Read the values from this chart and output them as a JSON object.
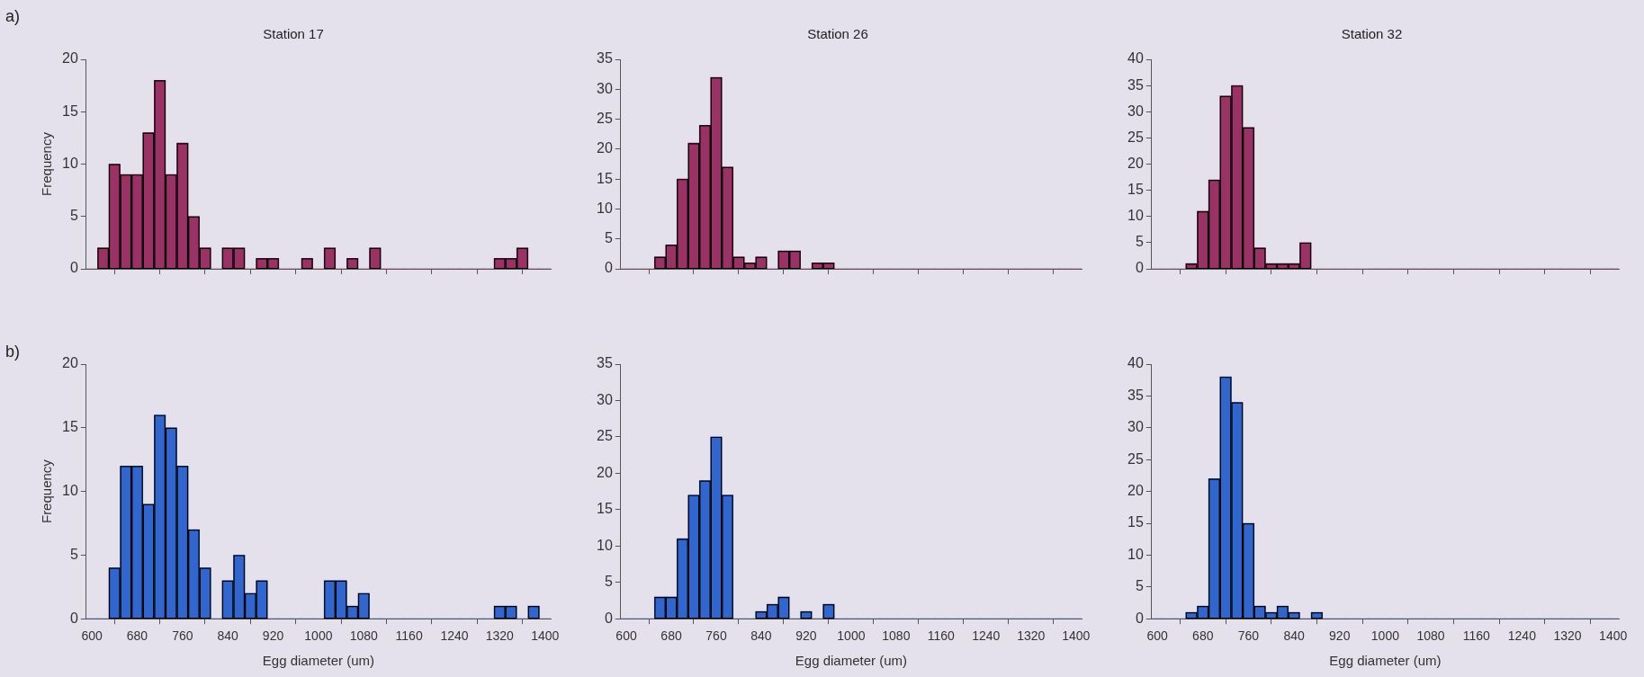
{
  "chart_data": [
    {
      "type": "histogram",
      "title": "Station 17",
      "ylabel": "Frequency",
      "annotations": [
        "a)"
      ],
      "color": "#993366",
      "tick_labels": "y",
      "bins": [
        590,
        610,
        630,
        650,
        670,
        690,
        710,
        730,
        750,
        770,
        790,
        810,
        830,
        850,
        870,
        890,
        910,
        930,
        950,
        970,
        990,
        1010,
        1030,
        1050,
        1070,
        1090,
        1110,
        1130,
        1150,
        1170,
        1190,
        1210,
        1230,
        1250,
        1270,
        1290,
        1310,
        1330,
        1350,
        1370,
        1390,
        1410
      ],
      "values": [
        0,
        2,
        10,
        9,
        9,
        13,
        18,
        9,
        12,
        5,
        2,
        0,
        2,
        2,
        0,
        1,
        1,
        0,
        0,
        1,
        0,
        2,
        0,
        1,
        0,
        2,
        0,
        0,
        0,
        0,
        0,
        0,
        0,
        0,
        0,
        0,
        1,
        1,
        2,
        0,
        0
      ],
      "xlim": [
        590,
        1410
      ],
      "xticks": [
        600,
        680,
        760,
        840,
        920,
        1000,
        1080,
        1160,
        1240,
        1320,
        1400
      ],
      "ylim": [
        0,
        20
      ],
      "yticks": [
        0,
        5,
        10,
        15,
        20
      ],
      "grid": false
    },
    {
      "type": "histogram",
      "title": "Station 26",
      "color": "#993366",
      "tick_labels": "y",
      "bins": [
        590,
        610,
        630,
        650,
        670,
        690,
        710,
        730,
        750,
        770,
        790,
        810,
        830,
        850,
        870,
        890,
        910,
        930,
        950,
        970,
        990,
        1010,
        1030,
        1050,
        1070,
        1090,
        1110,
        1130,
        1150,
        1170,
        1190,
        1210,
        1230,
        1250,
        1270,
        1290,
        1310,
        1330,
        1350,
        1370,
        1390,
        1410
      ],
      "values": [
        0,
        0,
        0,
        2,
        4,
        15,
        21,
        24,
        32,
        17,
        2,
        1,
        2,
        0,
        3,
        3,
        0,
        1,
        1,
        0,
        0,
        0,
        0,
        0,
        0,
        0,
        0,
        0,
        0,
        0,
        0,
        0,
        0,
        0,
        0,
        0,
        0,
        0,
        0,
        0,
        0
      ],
      "xlim": [
        590,
        1410
      ],
      "xticks": [
        600,
        680,
        760,
        840,
        920,
        1000,
        1080,
        1160,
        1240,
        1320,
        1400
      ],
      "ylim": [
        0,
        35
      ],
      "yticks": [
        0,
        5,
        10,
        15,
        20,
        25,
        30,
        35
      ],
      "grid": false
    },
    {
      "type": "histogram",
      "title": "Station 32",
      "color": "#993366",
      "tick_labels": "y",
      "bins": [
        590,
        610,
        630,
        650,
        670,
        690,
        710,
        730,
        750,
        770,
        790,
        810,
        830,
        850,
        870,
        890,
        910,
        930,
        950,
        970,
        990,
        1010,
        1030,
        1050,
        1070,
        1090,
        1110,
        1130,
        1150,
        1170,
        1190,
        1210,
        1230,
        1250,
        1270,
        1290,
        1310,
        1330,
        1350,
        1370,
        1390,
        1410
      ],
      "values": [
        0,
        0,
        0,
        1,
        11,
        17,
        33,
        35,
        27,
        4,
        1,
        1,
        1,
        5,
        0,
        0,
        0,
        0,
        0,
        0,
        0,
        0,
        0,
        0,
        0,
        0,
        0,
        0,
        0,
        0,
        0,
        0,
        0,
        0,
        0,
        0,
        0,
        0,
        0,
        0,
        0
      ],
      "xlim": [
        590,
        1410
      ],
      "xticks": [
        600,
        680,
        760,
        840,
        920,
        1000,
        1080,
        1160,
        1240,
        1320,
        1400
      ],
      "ylim": [
        0,
        40
      ],
      "yticks": [
        0,
        5,
        10,
        15,
        20,
        25,
        30,
        35,
        40
      ],
      "grid": false
    },
    {
      "type": "histogram",
      "ylabel": "Frequency",
      "xlabel": "Egg diameter (um)",
      "annotations": [
        "b)"
      ],
      "color": "#3366cc",
      "bins": [
        590,
        610,
        630,
        650,
        670,
        690,
        710,
        730,
        750,
        770,
        790,
        810,
        830,
        850,
        870,
        890,
        910,
        930,
        950,
        970,
        990,
        1010,
        1030,
        1050,
        1070,
        1090,
        1110,
        1130,
        1150,
        1170,
        1190,
        1210,
        1230,
        1250,
        1270,
        1290,
        1310,
        1330,
        1350,
        1370,
        1390,
        1410
      ],
      "values": [
        0,
        0,
        4,
        12,
        12,
        9,
        16,
        15,
        12,
        7,
        4,
        0,
        3,
        5,
        2,
        3,
        0,
        0,
        0,
        0,
        0,
        3,
        3,
        1,
        2,
        0,
        0,
        0,
        0,
        0,
        0,
        0,
        0,
        0,
        0,
        0,
        1,
        1,
        0,
        1,
        0
      ],
      "xlim": [
        590,
        1410
      ],
      "xticks": [
        600,
        680,
        760,
        840,
        920,
        1000,
        1080,
        1160,
        1240,
        1320,
        1400
      ],
      "ylim": [
        0,
        20
      ],
      "yticks": [
        0,
        5,
        10,
        15,
        20
      ],
      "grid": false
    },
    {
      "type": "histogram",
      "xlabel": "Egg diameter (um)",
      "color": "#3366cc",
      "bins": [
        590,
        610,
        630,
        650,
        670,
        690,
        710,
        730,
        750,
        770,
        790,
        810,
        830,
        850,
        870,
        890,
        910,
        930,
        950,
        970,
        990,
        1010,
        1030,
        1050,
        1070,
        1090,
        1110,
        1130,
        1150,
        1170,
        1190,
        1210,
        1230,
        1250,
        1270,
        1290,
        1310,
        1330,
        1350,
        1370,
        1390,
        1410
      ],
      "values": [
        0,
        0,
        0,
        3,
        3,
        11,
        17,
        19,
        25,
        17,
        0,
        0,
        1,
        2,
        3,
        0,
        1,
        0,
        2,
        0,
        0,
        0,
        0,
        0,
        0,
        0,
        0,
        0,
        0,
        0,
        0,
        0,
        0,
        0,
        0,
        0,
        0,
        0,
        0,
        0,
        0
      ],
      "xlim": [
        590,
        1410
      ],
      "xticks": [
        600,
        680,
        760,
        840,
        920,
        1000,
        1080,
        1160,
        1240,
        1320,
        1400
      ],
      "ylim": [
        0,
        35
      ],
      "yticks": [
        0,
        5,
        10,
        15,
        20,
        25,
        30,
        35
      ],
      "grid": false
    },
    {
      "type": "histogram",
      "xlabel": "Egg diameter (um)",
      "color": "#3366cc",
      "bins": [
        590,
        610,
        630,
        650,
        670,
        690,
        710,
        730,
        750,
        770,
        790,
        810,
        830,
        850,
        870,
        890,
        910,
        930,
        950,
        970,
        990,
        1010,
        1030,
        1050,
        1070,
        1090,
        1110,
        1130,
        1150,
        1170,
        1190,
        1210,
        1230,
        1250,
        1270,
        1290,
        1310,
        1330,
        1350,
        1370,
        1390,
        1410
      ],
      "values": [
        0,
        0,
        0,
        1,
        2,
        22,
        38,
        34,
        15,
        2,
        1,
        2,
        1,
        0,
        1,
        0,
        0,
        0,
        0,
        0,
        0,
        0,
        0,
        0,
        0,
        0,
        0,
        0,
        0,
        0,
        0,
        0,
        0,
        0,
        0,
        0,
        0,
        0,
        0,
        0,
        0
      ],
      "xlim": [
        590,
        1410
      ],
      "xticks": [
        600,
        680,
        760,
        840,
        920,
        1000,
        1080,
        1160,
        1240,
        1320,
        1400
      ],
      "ylim": [
        0,
        40
      ],
      "yticks": [
        0,
        5,
        10,
        15,
        20,
        25,
        30,
        35,
        40
      ],
      "grid": false
    }
  ]
}
